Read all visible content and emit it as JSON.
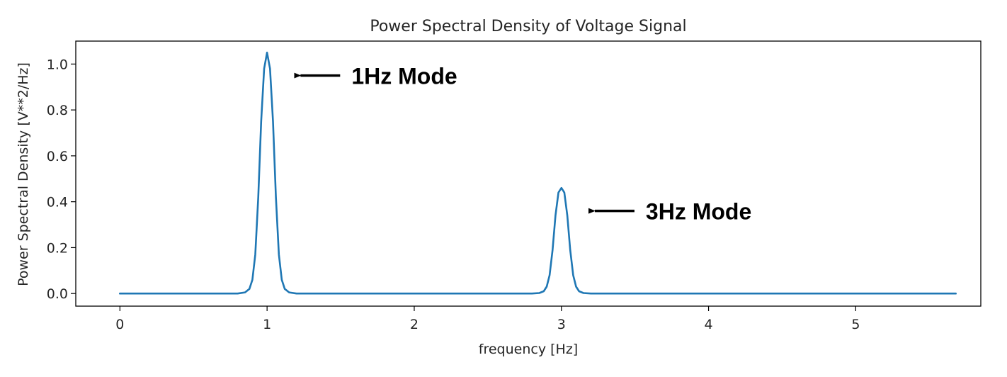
{
  "chart_data": {
    "type": "line",
    "title": "Power Spectral Density of Voltage Signal",
    "xlabel": "frequency [Hz]",
    "ylabel": "Power Spectral Density [V**2/Hz]",
    "xlim": [
      -0.3,
      5.85
    ],
    "ylim": [
      -0.055,
      1.1
    ],
    "xticks": [
      0,
      1,
      2,
      3,
      4,
      5
    ],
    "xtick_labels": [
      "0",
      "1",
      "2",
      "3",
      "4",
      "5"
    ],
    "yticks": [
      0.0,
      0.2,
      0.4,
      0.6,
      0.8,
      1.0
    ],
    "ytick_labels": [
      "0.0",
      "0.2",
      "0.4",
      "0.6",
      "0.8",
      "1.0"
    ],
    "grid": false,
    "series": [
      {
        "color": "#1f77b4",
        "x": [
          0.0,
          0.8,
          0.85,
          0.88,
          0.9,
          0.92,
          0.94,
          0.96,
          0.98,
          1.0,
          1.02,
          1.04,
          1.06,
          1.08,
          1.1,
          1.12,
          1.15,
          1.2,
          2.8,
          2.85,
          2.88,
          2.9,
          2.92,
          2.94,
          2.96,
          2.98,
          3.0,
          3.02,
          3.04,
          3.06,
          3.08,
          3.1,
          3.12,
          3.15,
          3.2,
          5.68
        ],
        "y": [
          0.0,
          0.0,
          0.005,
          0.02,
          0.06,
          0.17,
          0.42,
          0.75,
          0.98,
          1.05,
          0.98,
          0.75,
          0.42,
          0.17,
          0.06,
          0.02,
          0.005,
          0.0,
          0.0,
          0.002,
          0.01,
          0.03,
          0.08,
          0.19,
          0.34,
          0.44,
          0.46,
          0.44,
          0.34,
          0.19,
          0.08,
          0.03,
          0.01,
          0.002,
          0.0,
          0.0
        ]
      }
    ],
    "annotations": [
      {
        "text": "1Hz Mode",
        "x": 1.15,
        "y": 0.95,
        "color": "#000000"
      },
      {
        "text": "3Hz Mode",
        "x": 3.15,
        "y": 0.36,
        "color": "#000000"
      }
    ]
  }
}
